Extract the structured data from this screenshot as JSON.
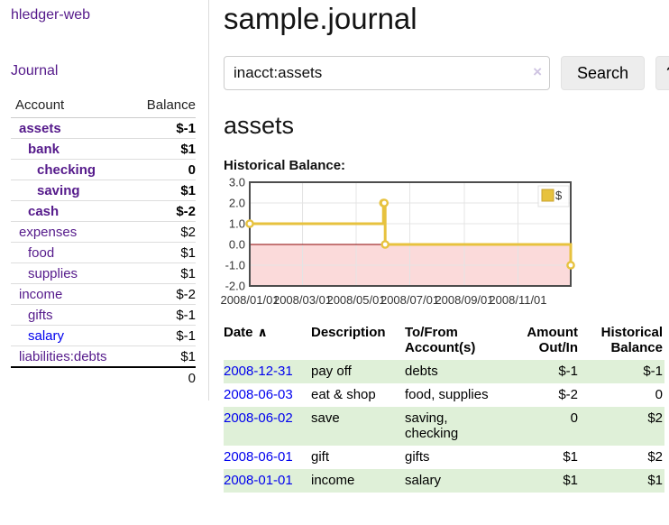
{
  "app": {
    "brand": "hledger-web",
    "nav_journal": "Journal"
  },
  "sidebar": {
    "header": {
      "account": "Account",
      "balance": "Balance"
    },
    "accounts": [
      {
        "name": "assets",
        "balance": "$-1",
        "depth": 0,
        "bold": true,
        "balance_style": "neg-strong",
        "link_style": "purple"
      },
      {
        "name": "bank",
        "balance": "$1",
        "depth": 1,
        "bold": true,
        "balance_style": "",
        "link_style": "purple"
      },
      {
        "name": "checking",
        "balance": "0",
        "depth": 2,
        "bold": true,
        "balance_style": "",
        "link_style": "purple"
      },
      {
        "name": "saving",
        "balance": "$1",
        "depth": 2,
        "bold": true,
        "balance_style": "",
        "link_style": "purple"
      },
      {
        "name": "cash",
        "balance": "$-2",
        "depth": 1,
        "bold": true,
        "balance_style": "neg-strong",
        "link_style": "purple"
      },
      {
        "name": "expenses",
        "balance": "$2",
        "depth": 0,
        "bold": false,
        "balance_style": "",
        "link_style": "purple"
      },
      {
        "name": "food",
        "balance": "$1",
        "depth": 1,
        "bold": false,
        "balance_style": "",
        "link_style": "purple"
      },
      {
        "name": "supplies",
        "balance": "$1",
        "depth": 1,
        "bold": false,
        "balance_style": "",
        "link_style": "purple"
      },
      {
        "name": "income",
        "balance": "$-2",
        "depth": 0,
        "bold": false,
        "balance_style": "neg-muted",
        "link_style": "purple"
      },
      {
        "name": "gifts",
        "balance": "$-1",
        "depth": 1,
        "bold": false,
        "balance_style": "neg-muted",
        "link_style": "purple"
      },
      {
        "name": "salary",
        "balance": "$-1",
        "depth": 1,
        "bold": false,
        "balance_style": "neg-muted",
        "link_style": "blue"
      },
      {
        "name": "liabilities:debts",
        "balance": "$1",
        "depth": 0,
        "bold": false,
        "balance_style": "",
        "link_style": "purple"
      }
    ],
    "total": "0"
  },
  "header": {
    "title": "sample.journal"
  },
  "search": {
    "value": "inacct:assets",
    "clear_icon": "×",
    "button_label": "Search",
    "help_label": "?"
  },
  "account_page": {
    "heading": "assets",
    "chart_label": "Historical Balance:"
  },
  "chart_data": {
    "type": "line",
    "style": "step",
    "title": "Historical Balance:",
    "legend": {
      "position": "top-right",
      "label": "$"
    },
    "series": [
      {
        "name": "$",
        "color": "#e7c23e",
        "points": [
          {
            "date": "2008-01-01",
            "value": 1
          },
          {
            "date": "2008-06-01",
            "value": 2
          },
          {
            "date": "2008-06-02",
            "value": 2
          },
          {
            "date": "2008-06-03",
            "value": 0
          },
          {
            "date": "2008-12-31",
            "value": -1
          }
        ]
      }
    ],
    "x_ticks": [
      {
        "label": "2008/01/01",
        "date": "2008-01-01"
      },
      {
        "label": "2008/03/01",
        "date": "2008-03-01"
      },
      {
        "label": "2008/05/01",
        "date": "2008-05-01"
      },
      {
        "label": "2008/07/01",
        "date": "2008-07-01"
      },
      {
        "label": "2008/09/01",
        "date": "2008-09-01"
      },
      {
        "label": "2008/11/01",
        "date": "2008-11-01"
      }
    ],
    "y_ticks": [
      {
        "label": "3.0",
        "value": 3
      },
      {
        "label": "2.0",
        "value": 2
      },
      {
        "label": "1.0",
        "value": 1
      },
      {
        "label": "0.0",
        "value": 0
      },
      {
        "label": "-1.0",
        "value": -1
      },
      {
        "label": "-2.0",
        "value": -2
      }
    ],
    "xlim": [
      "2008-01-01",
      "2008-12-31"
    ],
    "ylim": [
      -2,
      3
    ],
    "grid": true,
    "colors": {
      "border": "#4d4d4d",
      "gridline": "#e4e4e4",
      "zero_line": "#8b0000",
      "negative_region_fill": "#fbdada",
      "marker_fill": "#ffffff"
    }
  },
  "register": {
    "columns": {
      "date": "Date",
      "description": "Description",
      "accounts": "To/From Account(s)",
      "amount": "Amount Out/In",
      "balance": "Historical Balance"
    },
    "sort_icon": "∧",
    "rows": [
      {
        "date": "2008-12-31",
        "description": "pay off",
        "accounts": "debts",
        "amount": "$-1",
        "balance": "$-1",
        "amount_negative": true,
        "balance_negative": true
      },
      {
        "date": "2008-06-03",
        "description": "eat & shop",
        "accounts": "food, supplies",
        "amount": "$-2",
        "balance": "0",
        "amount_negative": true,
        "balance_negative": false
      },
      {
        "date": "2008-06-02",
        "description": "save",
        "accounts": "saving, checking",
        "amount": "0",
        "balance": "$2",
        "amount_negative": false,
        "balance_negative": false
      },
      {
        "date": "2008-06-01",
        "description": "gift",
        "accounts": "gifts",
        "amount": "$1",
        "balance": "$2",
        "amount_negative": false,
        "balance_negative": false
      },
      {
        "date": "2008-01-01",
        "description": "income",
        "accounts": "salary",
        "amount": "$1",
        "balance": "$1",
        "amount_negative": false,
        "balance_negative": false
      }
    ]
  }
}
